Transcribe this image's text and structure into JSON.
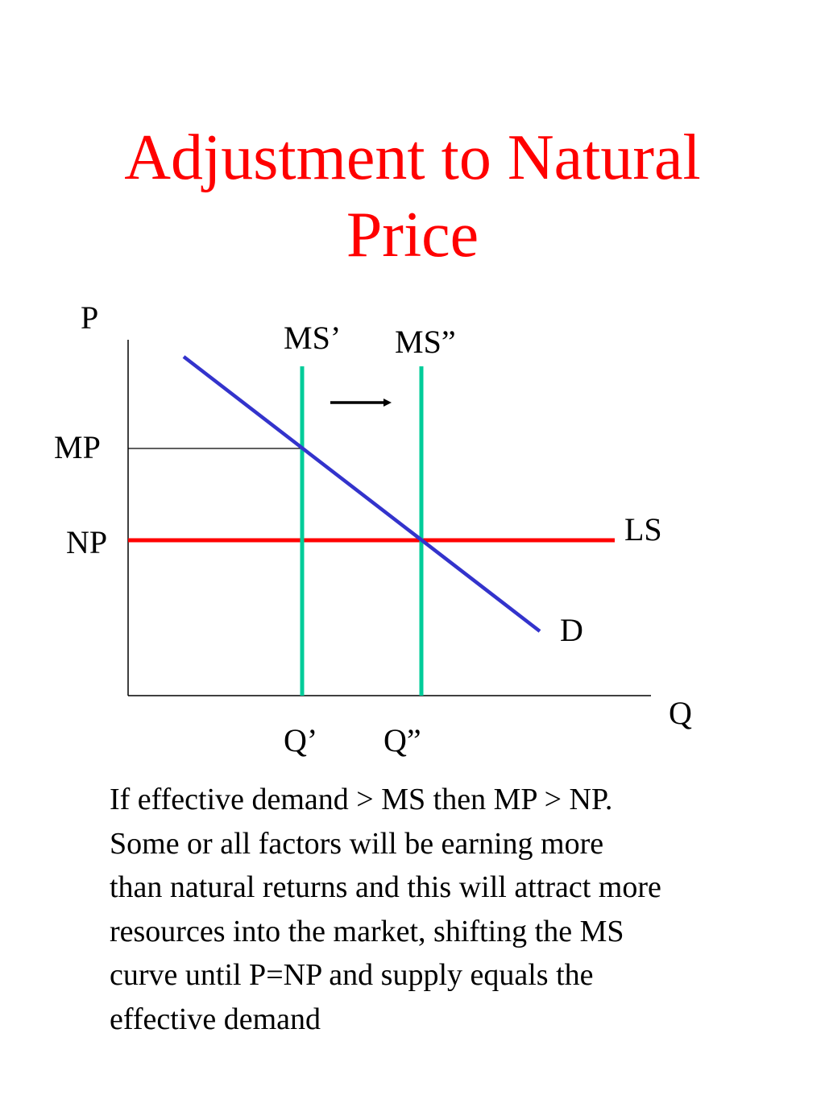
{
  "title": {
    "line1": "Adjustment to Natural",
    "line2": "Price"
  },
  "diagram": {
    "axis_labels": {
      "price": "P",
      "quantity": "Q"
    },
    "price_labels": {
      "market_price": "MP",
      "natural_price": "NP"
    },
    "curve_labels": {
      "supply_initial": "MS’",
      "supply_shifted": "MS”",
      "long_run_supply": "LS",
      "demand": "D"
    },
    "quantity_labels": {
      "initial": "Q’",
      "shifted": "Q”"
    },
    "colors": {
      "demand": "#3333cc",
      "long_run_supply": "#ff0000",
      "market_supply": "#00cc99",
      "axes": "#000000",
      "title": "#ff0000"
    }
  },
  "caption": {
    "lines": [
      "If effective demand > MS then MP > NP.",
      "Some or all factors will be earning more",
      "than natural returns and this will attract more",
      "resources into the market, shifting the MS",
      "curve until P=NP and supply equals the",
      "effective demand"
    ]
  }
}
